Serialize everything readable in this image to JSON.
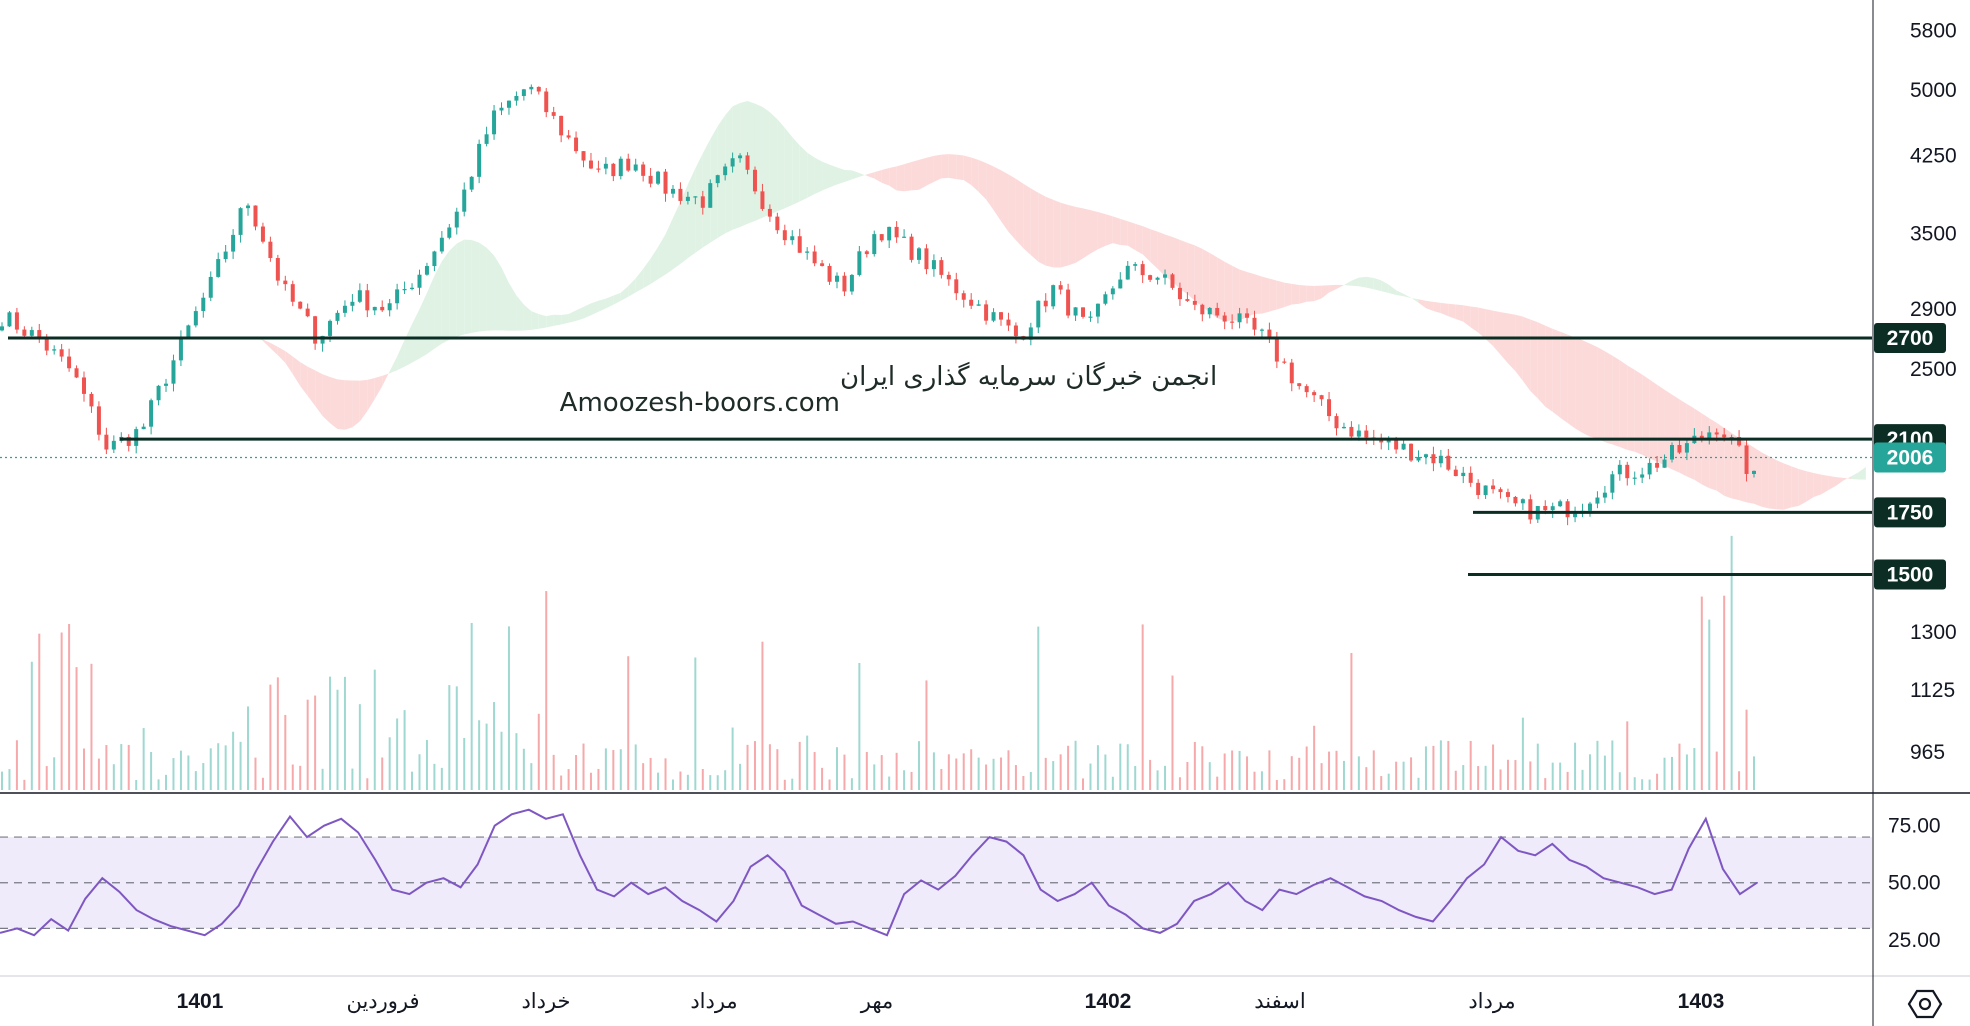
{
  "watermark": {
    "line1": "انجمن خبرگان سرمایه گذاری ایران",
    "line2": "Amoozesh-boors.com"
  },
  "colors": {
    "up": "#26a69a",
    "down": "#ef5350",
    "level_line": "#0b2d24",
    "tag_bg": "#0b2d24",
    "last_price_tag": "#26a69a",
    "cloud_bear": "#fcdada",
    "cloud_bull": "#dff2e4",
    "rsi_line": "#7e57c2",
    "rsi_band": "#efebfa"
  },
  "settings_icon": "hexagon-settings-icon",
  "chart_data": [
    {
      "type": "candlestick",
      "price_axis": {
        "scale": "log",
        "ticks": [
          5800,
          5000,
          4250,
          3500,
          2900,
          2500,
          1300,
          1125,
          965
        ],
        "range": [
          900,
          6100
        ]
      },
      "time_axis": {
        "labels": [
          {
            "text": "1401",
            "bold": true
          },
          {
            "text": "فروردین",
            "bold": false
          },
          {
            "text": "خرداد",
            "bold": false
          },
          {
            "text": "مرداد",
            "bold": false
          },
          {
            "text": "مهر",
            "bold": false
          },
          {
            "text": "1402",
            "bold": true
          },
          {
            "text": "اسفند",
            "bold": false
          },
          {
            "text": "مرداد",
            "bold": false
          },
          {
            "text": "1403",
            "bold": true
          }
        ]
      },
      "horizontal_levels": [
        2700,
        2100,
        1750,
        1500
      ],
      "last_price": 2006,
      "price_path": [
        2850,
        2700,
        2480,
        2050,
        2150,
        2600,
        3100,
        3800,
        3050,
        2700,
        3000,
        2900,
        3200,
        3700,
        4650,
        5050,
        4500,
        4050,
        4200,
        3900,
        3800,
        4200,
        3650,
        3300,
        3050,
        3550,
        3350,
        3100,
        2900,
        2700,
        3050,
        2750,
        3200,
        3150,
        2900,
        2850,
        2700,
        2400,
        2200,
        2100,
        2050,
        2000,
        1880,
        1780,
        1750,
        1780,
        1920,
        1960,
        2050,
        2180,
        1900
      ],
      "series": [
        {
          "name": "Volume",
          "type": "bar"
        },
        {
          "name": "Ichimoku Cloud",
          "type": "area"
        }
      ]
    },
    {
      "type": "line",
      "series": [
        {
          "name": "RSI",
          "values": [
            28,
            30,
            27,
            34,
            29,
            43,
            52,
            46,
            38,
            34,
            31,
            29,
            27,
            32,
            40,
            55,
            68,
            79,
            70,
            75,
            78,
            72,
            60,
            47,
            45,
            50,
            52,
            48,
            58,
            75,
            80,
            82,
            78,
            80,
            62,
            47,
            44,
            50,
            45,
            48,
            42,
            38,
            33,
            42,
            57,
            62,
            55,
            40,
            36,
            32,
            33,
            30,
            27,
            45,
            51,
            47,
            53,
            62,
            70,
            68,
            62,
            47,
            42,
            45,
            50,
            40,
            36,
            30,
            28,
            32,
            42,
            45,
            50,
            42,
            38,
            47,
            45,
            49,
            52,
            48,
            44,
            42,
            38,
            35,
            33,
            42,
            52,
            58,
            70,
            64,
            62,
            67,
            60,
            57,
            52,
            50,
            48,
            45,
            47,
            65,
            78,
            56,
            45,
            50
          ]
        }
      ],
      "yaxis": {
        "ticks": [
          75.0,
          50.0,
          25.0
        ],
        "range": [
          10,
          88
        ]
      },
      "bands": [
        30,
        50,
        70
      ]
    }
  ]
}
